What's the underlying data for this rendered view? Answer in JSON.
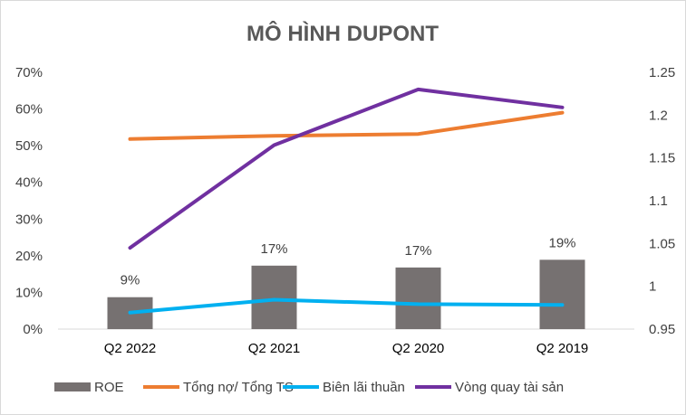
{
  "chart_data": {
    "type": "bar",
    "title": "MÔ HÌNH DUPONT",
    "categories": [
      "Q2 2022",
      "Q2 2021",
      "Q2 2020",
      "Q2 2019"
    ],
    "y_left": {
      "ylim": [
        0,
        0.7
      ],
      "ticks": [
        "0%",
        "10%",
        "20%",
        "30%",
        "40%",
        "50%",
        "60%",
        "70%"
      ]
    },
    "y_right": {
      "ylim": [
        0.95,
        1.25
      ],
      "ticks": [
        "0.95",
        "1",
        "1.05",
        "1.1",
        "1.15",
        "1.2",
        "1.25"
      ]
    },
    "series": [
      {
        "name": "ROE",
        "type": "bar",
        "axis": "left",
        "color": "#767171",
        "values": [
          0.087,
          0.173,
          0.168,
          0.189
        ],
        "labels": [
          "9%",
          "17%",
          "17%",
          "19%"
        ]
      },
      {
        "name": "Tổng nợ/ Tổng TS",
        "type": "line",
        "axis": "left",
        "color": "#ED7D31",
        "values": [
          0.518,
          0.527,
          0.532,
          0.59
        ]
      },
      {
        "name": "Biên lãi thuần",
        "type": "line",
        "axis": "left",
        "color": "#00B0F0",
        "values": [
          0.045,
          0.08,
          0.068,
          0.066
        ]
      },
      {
        "name": "Vòng quay tài sản",
        "type": "line",
        "axis": "right",
        "color": "#7030A0",
        "values": [
          1.045,
          1.165,
          1.23,
          1.209
        ]
      }
    ],
    "grid": false,
    "legend": "bottom"
  }
}
